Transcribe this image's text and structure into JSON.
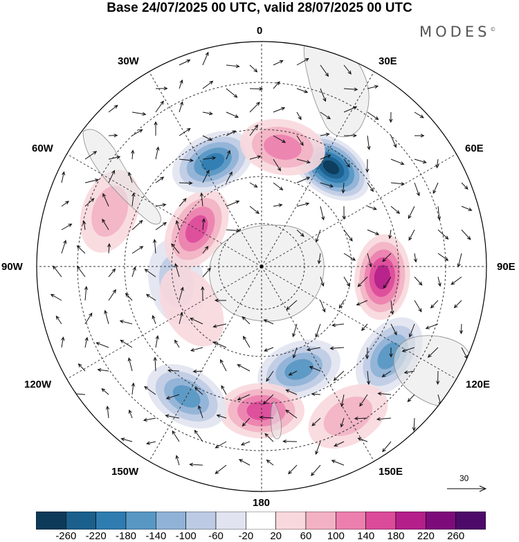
{
  "title": "Base 24/07/2025 00 UTC, valid 28/07/2025 00 UTC",
  "brand": "MODES",
  "brand_mark": "©",
  "longitude_labels": {
    "top": "0",
    "n30e": "30E",
    "n60e": "60E",
    "e90": "90E",
    "s120e": "120E",
    "s150e": "150E",
    "bottom": "180",
    "s150w": "150W",
    "s120w": "120W",
    "w90": "90W",
    "n60w": "60W",
    "n30w": "30W"
  },
  "reference_vector": {
    "value": "30"
  },
  "colorbar": {
    "ticks": [
      "-260",
      "-220",
      "-180",
      "-140",
      "-100",
      "-60",
      "-20",
      "20",
      "60",
      "100",
      "140",
      "180",
      "220",
      "260"
    ],
    "colors": [
      "#0d3a58",
      "#1b5f8c",
      "#2f7cb0",
      "#5897c4",
      "#8fb2d6",
      "#bccbe3",
      "#e1e4f0",
      "#ffffff",
      "#f8d8dd",
      "#f2b2c4",
      "#ec7fae",
      "#dc4a9a",
      "#b41f8a",
      "#7d0c7a",
      "#4e0a69"
    ]
  },
  "anomaly_centers": [
    {
      "lon": 35,
      "lat": -48,
      "value": -260
    },
    {
      "lon": 95,
      "lat": -48,
      "value": 200
    },
    {
      "lon": 125,
      "lat": -36,
      "value": -140
    },
    {
      "lon": 150,
      "lat": -30,
      "value": 80
    },
    {
      "lon": 160,
      "lat": -52,
      "value": -140
    },
    {
      "lon": 180,
      "lat": -40,
      "value": 150
    },
    {
      "lon": -150,
      "lat": -38,
      "value": -170
    },
    {
      "lon": -100,
      "lat": -60,
      "value": -80
    },
    {
      "lon": -120,
      "lat": -62,
      "value": 40
    },
    {
      "lon": -60,
      "lat": -64,
      "value": 140
    },
    {
      "lon": -25,
      "lat": -50,
      "value": -190
    },
    {
      "lon": 10,
      "lat": -48,
      "value": 120
    },
    {
      "lon": -70,
      "lat": -34,
      "value": 60
    }
  ]
}
